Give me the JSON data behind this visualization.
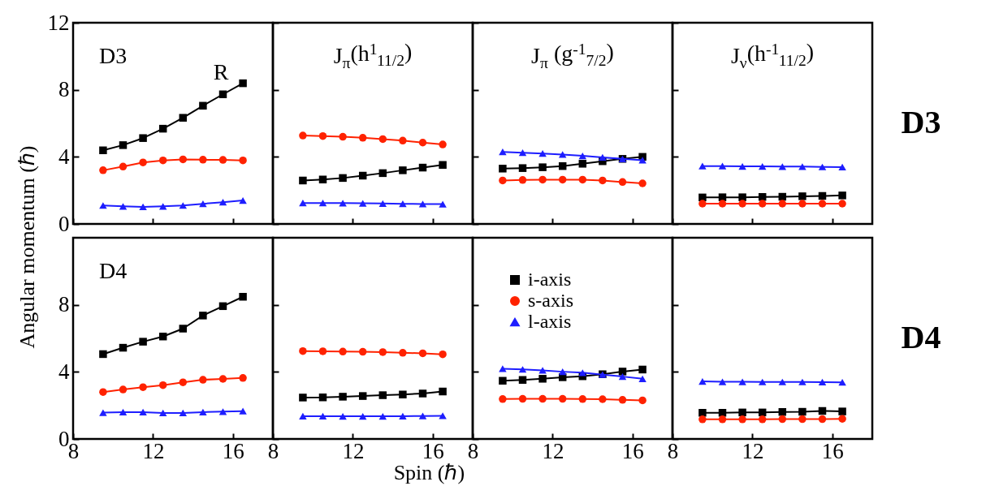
{
  "chart_data": [
    {
      "type": "line",
      "annotations": [
        "D3",
        "R"
      ],
      "x": [
        9.5,
        10.5,
        11.5,
        12.5,
        13.5,
        14.5,
        15.5,
        16.5
      ],
      "xlim": [
        8,
        18
      ],
      "xticks": [
        8,
        12,
        16
      ],
      "ylim": [
        0,
        12
      ],
      "yticks": [
        0,
        4,
        8,
        12
      ],
      "tick_labels": "y",
      "series": [
        {
          "color": "#000000",
          "marker": "square",
          "values": [
            4.39,
            4.7,
            5.12,
            5.68,
            6.33,
            7.05,
            7.73,
            8.39
          ]
        },
        {
          "color": "#ff2200",
          "marker": "circle",
          "values": [
            3.2,
            3.42,
            3.67,
            3.79,
            3.85,
            3.83,
            3.82,
            3.79
          ]
        },
        {
          "color": "#1e1eff",
          "marker": "triangle",
          "values": [
            1.1,
            1.05,
            1.02,
            1.05,
            1.1,
            1.2,
            1.3,
            1.4
          ]
        }
      ]
    },
    {
      "type": "line",
      "title": "J$_{π}$(h$^{1}$$_{11/2}$)",
      "x": [
        9.5,
        10.5,
        11.5,
        12.5,
        13.5,
        14.5,
        15.5,
        16.5
      ],
      "xlim": [
        8,
        18
      ],
      "xticks": [
        8,
        12,
        16
      ],
      "ylim": [
        0,
        12
      ],
      "yticks": [
        0,
        4,
        8,
        12
      ],
      "tick_labels": false,
      "series": [
        {
          "color": "#000000",
          "marker": "square",
          "values": [
            2.59,
            2.65,
            2.74,
            2.88,
            3.03,
            3.2,
            3.36,
            3.52
          ]
        },
        {
          "color": "#ff2200",
          "marker": "circle",
          "values": [
            5.27,
            5.24,
            5.2,
            5.14,
            5.06,
            4.97,
            4.85,
            4.74
          ]
        },
        {
          "color": "#1e1eff",
          "marker": "triangle",
          "values": [
            1.25,
            1.25,
            1.24,
            1.23,
            1.22,
            1.2,
            1.19,
            1.18
          ]
        }
      ]
    },
    {
      "type": "line",
      "title": "J$_{π}$ (g$^{-1}$$_{7/2}$)",
      "x": [
        9.5,
        10.5,
        11.5,
        12.5,
        13.5,
        14.5,
        15.5,
        16.5
      ],
      "xlim": [
        8,
        18
      ],
      "xticks": [
        8,
        12,
        16
      ],
      "ylim": [
        0,
        12
      ],
      "yticks": [
        0,
        4,
        8,
        12
      ],
      "tick_labels": false,
      "series": [
        {
          "color": "#000000",
          "marker": "square",
          "values": [
            3.3,
            3.33,
            3.38,
            3.45,
            3.59,
            3.74,
            3.88,
            4.0
          ]
        },
        {
          "color": "#ff2200",
          "marker": "circle",
          "values": [
            2.59,
            2.62,
            2.64,
            2.64,
            2.64,
            2.59,
            2.5,
            2.42
          ]
        },
        {
          "color": "#1e1eff",
          "marker": "triangle",
          "values": [
            4.3,
            4.25,
            4.2,
            4.14,
            4.06,
            3.97,
            3.88,
            3.8
          ]
        }
      ]
    },
    {
      "type": "line",
      "title": "J$_{ν}$(h$^{-1}$$_{11/2}$)",
      "annotations": [
        "D3"
      ],
      "x": [
        9.5,
        10.5,
        11.5,
        12.5,
        13.5,
        14.5,
        15.5,
        16.5
      ],
      "xlim": [
        8,
        18
      ],
      "xticks": [
        8,
        12,
        16
      ],
      "ylim": [
        0,
        12
      ],
      "yticks": [
        0,
        4,
        8,
        12
      ],
      "tick_labels": false,
      "series": [
        {
          "color": "#000000",
          "marker": "square",
          "values": [
            1.58,
            1.59,
            1.59,
            1.61,
            1.62,
            1.65,
            1.67,
            1.7
          ]
        },
        {
          "color": "#ff2200",
          "marker": "circle",
          "values": [
            1.21,
            1.21,
            1.21,
            1.21,
            1.21,
            1.21,
            1.21,
            1.21
          ]
        },
        {
          "color": "#1e1eff",
          "marker": "triangle",
          "values": [
            3.45,
            3.45,
            3.43,
            3.43,
            3.42,
            3.42,
            3.4,
            3.39
          ]
        }
      ]
    },
    {
      "type": "line",
      "annotations": [
        "D4"
      ],
      "ylabel": "Angular momentum (ℏ)",
      "x": [
        9.5,
        10.5,
        11.5,
        12.5,
        13.5,
        14.5,
        15.5,
        16.5
      ],
      "xlim": [
        8,
        18
      ],
      "xticks": [
        8,
        12,
        16
      ],
      "ylim": [
        0,
        12
      ],
      "yticks": [
        0,
        4,
        8
      ],
      "series": [
        {
          "color": "#000000",
          "marker": "square",
          "values": [
            5.06,
            5.44,
            5.8,
            6.11,
            6.58,
            7.36,
            7.92,
            8.48
          ]
        },
        {
          "color": "#ff2200",
          "marker": "circle",
          "values": [
            2.8,
            2.95,
            3.09,
            3.21,
            3.38,
            3.53,
            3.58,
            3.64
          ]
        },
        {
          "color": "#1e1eff",
          "marker": "triangle",
          "values": [
            1.57,
            1.6,
            1.6,
            1.55,
            1.55,
            1.6,
            1.63,
            1.66
          ]
        }
      ]
    },
    {
      "type": "line",
      "xlabel": "Spin (ℏ)",
      "x": [
        9.5,
        10.5,
        11.5,
        12.5,
        13.5,
        14.5,
        15.5,
        16.5
      ],
      "xlim": [
        8,
        18
      ],
      "xticks": [
        8,
        12,
        16
      ],
      "ylim": [
        0,
        12
      ],
      "yticks": [
        0,
        4,
        8
      ],
      "tick_labels": "x",
      "series": [
        {
          "color": "#000000",
          "marker": "square",
          "values": [
            2.47,
            2.48,
            2.52,
            2.56,
            2.61,
            2.65,
            2.71,
            2.83
          ]
        },
        {
          "color": "#ff2200",
          "marker": "circle",
          "values": [
            5.24,
            5.23,
            5.21,
            5.2,
            5.18,
            5.14,
            5.11,
            5.05
          ]
        },
        {
          "color": "#1e1eff",
          "marker": "triangle",
          "values": [
            1.36,
            1.36,
            1.35,
            1.35,
            1.35,
            1.36,
            1.37,
            1.38
          ]
        }
      ]
    },
    {
      "type": "line",
      "legend": "top left",
      "x": [
        9.5,
        10.5,
        11.5,
        12.5,
        13.5,
        14.5,
        15.5,
        16.5
      ],
      "xlim": [
        8,
        18
      ],
      "xticks": [
        8,
        12,
        16
      ],
      "ylim": [
        0,
        12
      ],
      "yticks": [
        0,
        4,
        8
      ],
      "tick_labels": "x",
      "series": [
        {
          "name": "i-axis",
          "color": "#000000",
          "marker": "square",
          "values": [
            3.47,
            3.52,
            3.59,
            3.68,
            3.74,
            3.86,
            4.02,
            4.14
          ]
        },
        {
          "name": "s-axis",
          "color": "#ff2200",
          "marker": "circle",
          "values": [
            2.38,
            2.39,
            2.39,
            2.39,
            2.38,
            2.37,
            2.33,
            2.3
          ]
        },
        {
          "name": "l-axis",
          "color": "#1e1eff",
          "marker": "triangle",
          "values": [
            4.19,
            4.15,
            4.09,
            4.01,
            3.95,
            3.84,
            3.72,
            3.59
          ]
        }
      ]
    },
    {
      "type": "line",
      "annotations": [
        "D4"
      ],
      "x": [
        9.5,
        10.5,
        11.5,
        12.5,
        13.5,
        14.5,
        15.5,
        16.5
      ],
      "xlim": [
        8,
        18
      ],
      "xticks": [
        8,
        12,
        16
      ],
      "ylim": [
        0,
        12
      ],
      "yticks": [
        0,
        4,
        8
      ],
      "tick_labels": "x",
      "series": [
        {
          "color": "#000000",
          "marker": "square",
          "values": [
            1.56,
            1.56,
            1.58,
            1.58,
            1.61,
            1.62,
            1.67,
            1.64
          ]
        },
        {
          "color": "#ff2200",
          "marker": "circle",
          "values": [
            1.17,
            1.17,
            1.17,
            1.17,
            1.18,
            1.18,
            1.18,
            1.2
          ]
        },
        {
          "color": "#1e1eff",
          "marker": "triangle",
          "values": [
            3.43,
            3.41,
            3.41,
            3.4,
            3.4,
            3.4,
            3.39,
            3.38
          ]
        }
      ]
    }
  ]
}
